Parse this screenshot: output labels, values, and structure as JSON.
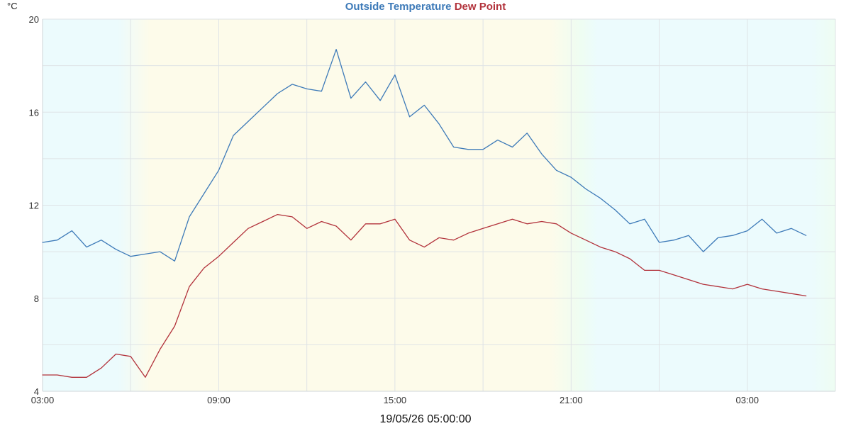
{
  "chart_data": {
    "type": "line",
    "title_parts": [
      {
        "text": "Outside Temperature",
        "color": "#3d7ab8"
      },
      {
        "text": "Dew Point",
        "color": "#b2323b"
      }
    ],
    "y_unit": "°C",
    "footer": "19/05/26 05:00:00",
    "ylim": [
      4,
      20
    ],
    "y_ticks": [
      "4",
      "8",
      "12",
      "16",
      "20"
    ],
    "xlim": [
      0,
      27
    ],
    "x_ticks": [
      {
        "label": "03:00",
        "hour": 0
      },
      {
        "label": "09:00",
        "hour": 6
      },
      {
        "label": "15:00",
        "hour": 12
      },
      {
        "label": "21:00",
        "hour": 18
      },
      {
        "label": "03:00",
        "hour": 24
      }
    ],
    "grid": true,
    "series": [
      {
        "name": "Outside Temperature",
        "color": "#3d7ab8",
        "x": [
          0,
          0.5,
          1,
          1.5,
          2,
          2.5,
          3,
          3.5,
          4,
          4.5,
          5,
          5.5,
          6,
          6.5,
          7,
          7.5,
          8,
          8.5,
          9,
          9.5,
          10,
          10.5,
          11,
          11.5,
          12,
          12.5,
          13,
          13.5,
          14,
          14.5,
          15,
          15.5,
          16,
          16.5,
          17,
          17.5,
          18,
          18.5,
          19,
          19.5,
          20,
          20.5,
          21,
          21.5,
          22,
          22.5,
          23,
          23.5,
          24,
          24.5,
          25,
          25.5,
          26
        ],
        "y": [
          10.4,
          10.5,
          10.9,
          10.2,
          10.5,
          10.1,
          9.8,
          9.9,
          10.0,
          9.6,
          11.5,
          12.5,
          13.5,
          15.0,
          15.6,
          16.2,
          16.8,
          17.2,
          17.0,
          16.9,
          18.7,
          16.6,
          17.3,
          16.5,
          17.6,
          15.8,
          16.3,
          15.5,
          14.5,
          14.4,
          14.4,
          14.8,
          14.5,
          15.1,
          14.2,
          13.5,
          13.2,
          12.7,
          12.3,
          11.8,
          11.2,
          11.4,
          10.4,
          10.5,
          10.7,
          10.0,
          10.6,
          10.7,
          10.9,
          11.4,
          10.8,
          11.0,
          10.7
        ]
      },
      {
        "name": "Dew Point",
        "color": "#b2323b",
        "x": [
          0,
          0.5,
          1,
          1.5,
          2,
          2.5,
          3,
          3.5,
          4,
          4.5,
          5,
          5.5,
          6,
          6.5,
          7,
          7.5,
          8,
          8.5,
          9,
          9.5,
          10,
          10.5,
          11,
          11.5,
          12,
          12.5,
          13,
          13.5,
          14,
          14.5,
          15,
          15.5,
          16,
          16.5,
          17,
          17.5,
          18,
          18.5,
          19,
          19.5,
          20,
          20.5,
          21,
          21.5,
          22,
          22.5,
          23,
          23.5,
          24,
          24.5,
          25,
          25.5,
          26
        ],
        "y": [
          4.7,
          4.7,
          4.6,
          4.6,
          5.0,
          5.6,
          5.5,
          4.6,
          5.8,
          6.8,
          8.5,
          9.3,
          9.8,
          10.4,
          11.0,
          11.3,
          11.6,
          11.5,
          11.0,
          11.3,
          11.1,
          10.5,
          11.2,
          11.2,
          11.4,
          10.5,
          10.2,
          10.6,
          10.5,
          10.8,
          11.0,
          11.2,
          11.4,
          11.2,
          11.3,
          11.2,
          10.8,
          10.5,
          10.2,
          10.0,
          9.7,
          9.2,
          9.2,
          9.0,
          8.8,
          8.6,
          8.5,
          8.4,
          8.6,
          8.4,
          8.3,
          8.2,
          8.1
        ]
      }
    ]
  }
}
